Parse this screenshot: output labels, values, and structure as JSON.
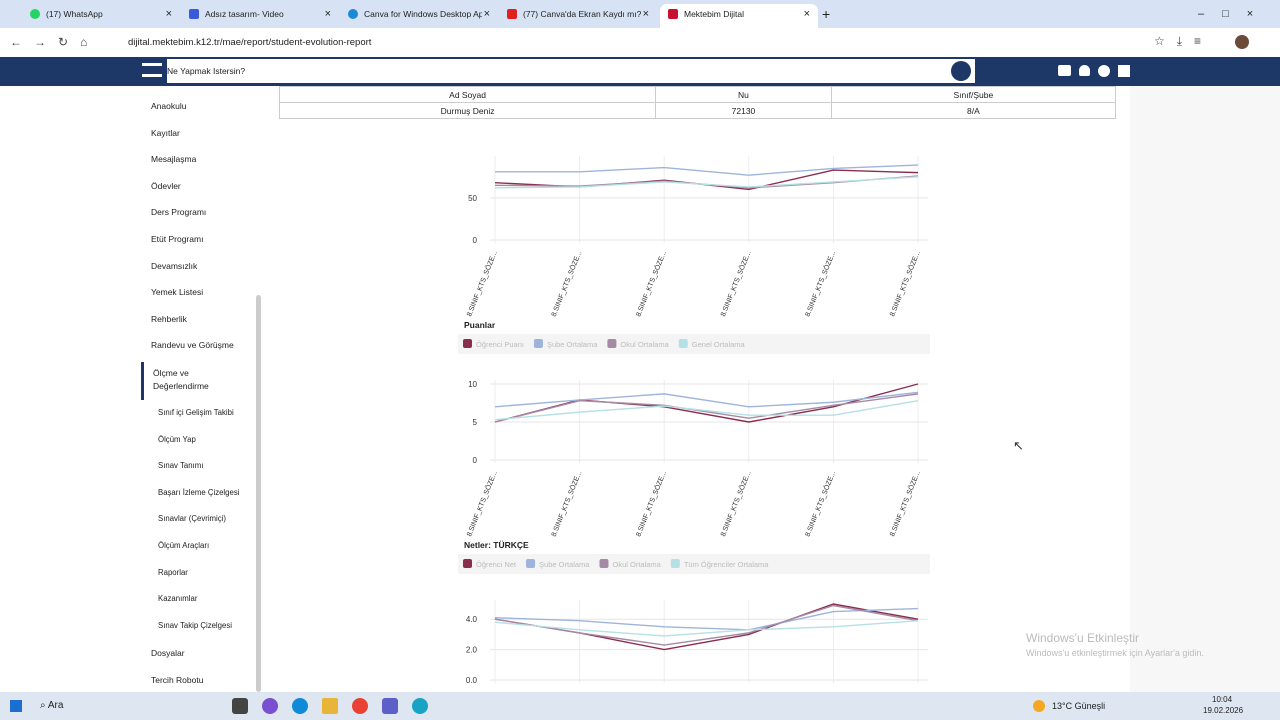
{
  "browser": {
    "tabs": [
      "(17) WhatsApp",
      "Adsız tasarım- Video",
      "Canva for Windows Desktop Ap",
      "(77) Canva'da Ekran Kaydı mı?",
      "Mektebim Dijital"
    ],
    "url": "dijital.mektebim.k12.tr/mae/report/student-evolution-report"
  },
  "app": {
    "search_placeholder": "Ne Yapmak Istersin?"
  },
  "sidebar": {
    "items_top": [
      "Anaokulu",
      "Kayıtlar",
      "Mesajlaşma",
      "Ödevler",
      "Ders Programı",
      "Etüt Programı",
      "Devamsızlık",
      "Yemek Listesi",
      "Rehberlik",
      "Randevu ve Görüşme"
    ],
    "active": "Ölçme ve Değerlendirme",
    "subitems": [
      "Sınıf içi Gelişim Takibi",
      "Ölçüm Yap",
      "Sınav Tanımı",
      "Başarı İzleme Çizelgesi",
      "Sınavlar (Çevrimiçi)",
      "Ölçüm Araçları",
      "Raporlar",
      "Kazanımlar",
      "Sınav Takip Çizelgesi"
    ],
    "items_bottom": [
      "Dosyalar",
      "Tercih Robotu"
    ]
  },
  "table": {
    "headers": [
      "Ad Soyad",
      "Nu",
      "Sınıf/Şube"
    ],
    "rows": [
      [
        "Durmuş Deniz",
        72130,
        "8/A"
      ]
    ]
  },
  "charts": [
    {
      "type": "line",
      "categories": [
        "8.SINIF_KTS_SÖZE...",
        "8.SINIF_KTS_SÖZE...",
        "8.SINIF_KTS_SÖZE...",
        "8.SINIF_KTS_SÖZE...",
        "8.SINIF_KTS_SÖZE...",
        "8.SINIF_KTS_SÖZE..."
      ],
      "ylim": [
        0,
        95
      ],
      "yticks": [
        0,
        50
      ],
      "series": [
        {
          "color": "#8b2d4f",
          "values": [
            68,
            63,
            71,
            60,
            83,
            80
          ]
        },
        {
          "color": "#9fb4dc",
          "values": [
            81,
            81,
            86,
            77,
            85,
            89
          ]
        },
        {
          "color": "#a58aa5",
          "values": [
            65,
            64,
            70,
            62,
            68,
            76
          ]
        },
        {
          "color": "#b5e0e6",
          "values": [
            62,
            63,
            69,
            63,
            69,
            75
          ]
        }
      ]
    },
    {
      "type": "line",
      "title": "Puanlar",
      "categories": [
        "8.SINIF_KTS_SÖZE...",
        "8.SINIF_KTS_SÖZE...",
        "8.SINIF_KTS_SÖZE...",
        "8.SINIF_KTS_SÖZE...",
        "8.SINIF_KTS_SÖZE...",
        "8.SINIF_KTS_SÖZE..."
      ],
      "ylim": [
        0,
        10
      ],
      "yticks": [
        0,
        5,
        10
      ],
      "series": [
        {
          "name": "Öğrenci Puanı",
          "color": "#8b2d4f",
          "values": [
            5,
            7.9,
            7,
            5,
            7,
            10
          ]
        },
        {
          "name": "Şube Ortalama",
          "color": "#9fb4dc",
          "values": [
            7,
            7.9,
            8.7,
            7,
            7.6,
            8.9
          ]
        },
        {
          "name": "Okul Ortalama",
          "color": "#a58aa5",
          "values": [
            5,
            7.8,
            7.2,
            5.5,
            7.2,
            8.7
          ]
        },
        {
          "name": "Genel Ortalama",
          "color": "#b5e0e6",
          "values": [
            5.3,
            6.3,
            7.1,
            5.9,
            5.9,
            7.8
          ]
        }
      ]
    },
    {
      "type": "line",
      "title": "Netler: TÜRKÇE",
      "ylim": [
        0,
        5
      ],
      "yticks": [
        {
          "value": 0,
          "label": "0.0"
        },
        {
          "value": 2,
          "label": "2.0"
        },
        {
          "value": 4,
          "label": "4.0"
        }
      ],
      "series": [
        {
          "name": "Öğrenci Net",
          "color": "#8b2d4f",
          "values": [
            4,
            3.1,
            2,
            3,
            5,
            4
          ]
        },
        {
          "name": "Şube Ortalama",
          "color": "#9fb4dc",
          "values": [
            4.1,
            3.9,
            3.5,
            3.3,
            4.5,
            4.7
          ]
        },
        {
          "name": "Okul Ortalama",
          "color": "#a58aa5",
          "values": [
            4,
            3.1,
            2.3,
            3.1,
            4.9,
            3.9
          ]
        },
        {
          "name": "Tüm Öğrenciler Ortalama",
          "color": "#b5e0e6",
          "values": [
            3.8,
            3.3,
            2.9,
            3.3,
            3.5,
            3.9
          ]
        }
      ]
    }
  ],
  "watermark": {
    "title": "Windows'u Etkinleştir",
    "text": "Windows'u etkinleştirmek için Ayarlar'a gidin."
  },
  "taskbar": {
    "search": "Ara",
    "weather": "13°C Güneşli",
    "time": "10:04",
    "date": "19.02.2026"
  }
}
